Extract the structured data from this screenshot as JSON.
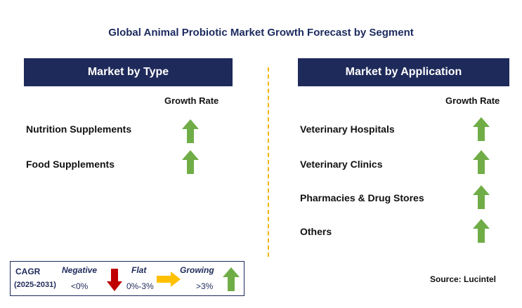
{
  "title": "Global Animal Probiotic Market Growth Forecast by Segment",
  "left_panel": {
    "header": "Market by Type",
    "growth_header": "Growth Rate",
    "rows": [
      {
        "label": "Nutrition Supplements",
        "trend": "growing"
      },
      {
        "label": "Food Supplements",
        "trend": "growing"
      }
    ]
  },
  "right_panel": {
    "header": "Market by Application",
    "growth_header": "Growth Rate",
    "rows": [
      {
        "label": "Veterinary Hospitals",
        "trend": "growing"
      },
      {
        "label": "Veterinary Clinics",
        "trend": "growing"
      },
      {
        "label": "Pharmacies & Drug Stores",
        "trend": "growing"
      },
      {
        "label": "Others",
        "trend": "growing"
      }
    ]
  },
  "legend": {
    "cagr_label": "CAGR",
    "period": "(2025-2031)",
    "negative": {
      "label": "Negative",
      "range": "<0%",
      "color": "#c00000",
      "icon": "down-arrow-icon"
    },
    "flat": {
      "label": "Flat",
      "range": "0%-3%",
      "color": "#ffc000",
      "icon": "right-arrow-icon"
    },
    "growing": {
      "label": "Growing",
      "range": ">3%",
      "color": "#70ad47",
      "icon": "up-arrow-icon"
    }
  },
  "source": "Source: Lucintel",
  "colors": {
    "header_bg": "#1e2a5a",
    "title": "#1b2a5e",
    "divider": "#f2b400",
    "arrow_up": "#70ad47"
  }
}
